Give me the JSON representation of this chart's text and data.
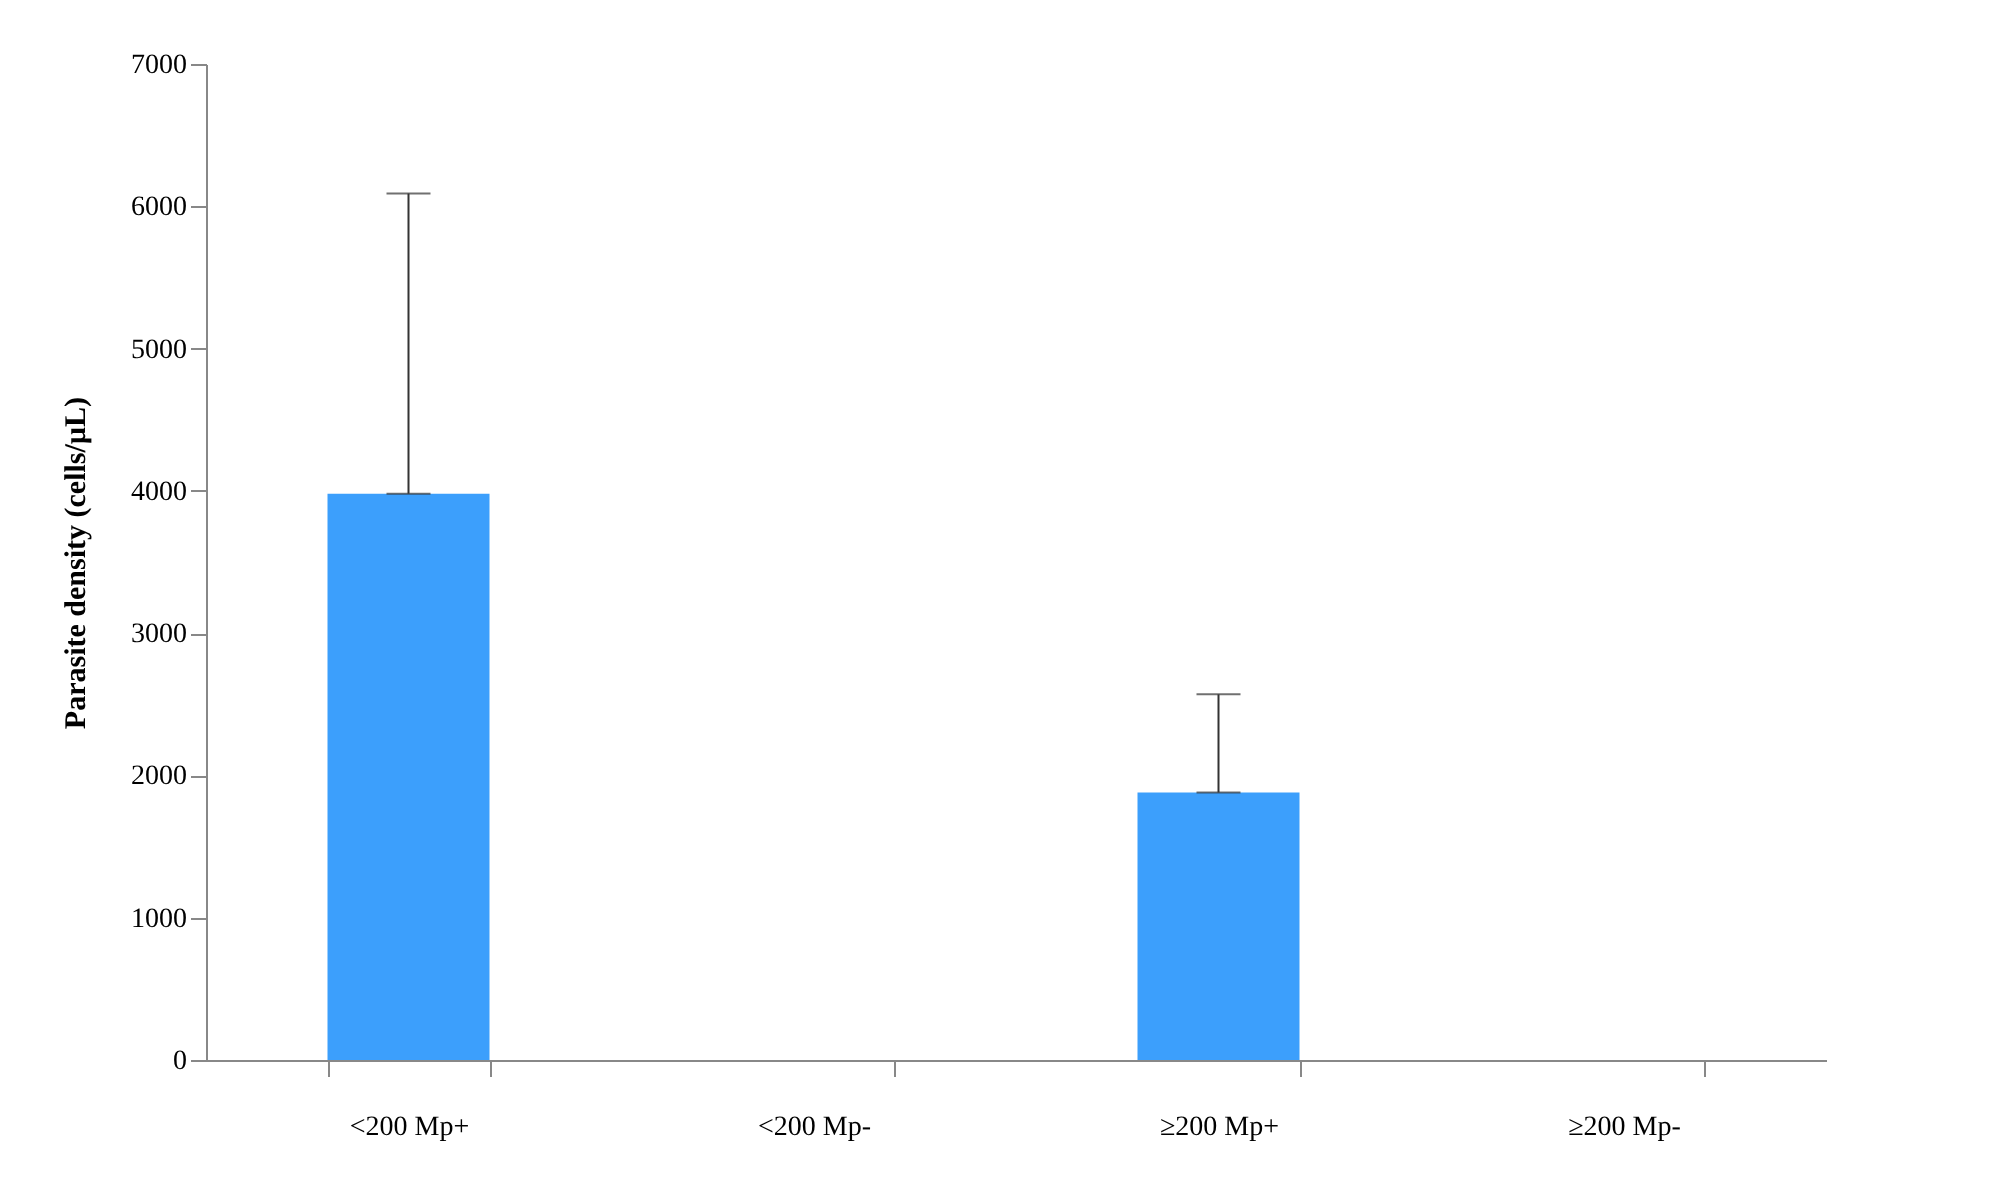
{
  "chart_data": {
    "type": "bar",
    "ylabel": "Parasite density (cells/µL)",
    "categories": [
      "<200 Mp+",
      "<200 Mp-",
      "≥200 Mp+",
      "≥200 Mp-"
    ],
    "values": [
      3980,
      null,
      1880,
      null
    ],
    "errors": [
      [
        3980,
        6090
      ],
      null,
      [
        1880,
        2570
      ],
      null
    ],
    "color": "#3c9ffc",
    "ylim": [
      0,
      7000
    ],
    "yticks": [
      0,
      1000,
      2000,
      3000,
      4000,
      5000,
      6000,
      7000
    ],
    "grid": false
  }
}
